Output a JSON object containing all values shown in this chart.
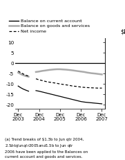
{
  "ylabel": "$b",
  "ylim": [
    -22,
    12
  ],
  "yticks": [
    10,
    5,
    0,
    -5,
    -10,
    -15,
    -20
  ],
  "xtick_labels": [
    "Dec\n2003",
    "Dec\n2004",
    "Dec\n2005",
    "Dec\n2006",
    "Dec\n2007"
  ],
  "xtick_pos": [
    0,
    1,
    2,
    3,
    4
  ],
  "xlim": [
    -0.15,
    4.15
  ],
  "legend_entries": [
    {
      "label": "Balance on current account",
      "color": "#000000",
      "ls": "solid",
      "lw": 1.0
    },
    {
      "label": "Balance on goods and services",
      "color": "#aaaaaa",
      "ls": "solid",
      "lw": 1.8
    },
    {
      "label": "Net income",
      "color": "#000000",
      "ls": "dashed",
      "lw": 0.9
    }
  ],
  "flat_line": {
    "x": [
      -0.15,
      4.15
    ],
    "y": [
      0,
      0
    ]
  },
  "goods_services_seg1": {
    "x": [
      0.0,
      0.12,
      0.25,
      0.37,
      0.5
    ],
    "y": [
      -4.5,
      -5.2,
      -5.8,
      -6.2,
      -6.5
    ]
  },
  "goods_services_seg2": {
    "x": [
      0.85,
      1.0,
      1.15,
      1.3,
      1.5,
      1.7,
      1.85,
      2.0,
      2.15,
      2.3,
      2.5,
      2.65,
      2.85,
      3.0,
      3.15,
      3.3,
      3.5,
      3.7,
      3.85,
      4.0
    ],
    "y": [
      -4.2,
      -4.0,
      -3.7,
      -3.5,
      -3.2,
      -3.0,
      -2.9,
      -2.9,
      -3.0,
      -3.1,
      -3.3,
      -3.5,
      -3.8,
      -4.0,
      -4.2,
      -4.5,
      -4.8,
      -5.0,
      -5.2,
      -5.4
    ]
  },
  "net_income_seg1": {
    "x": [
      0.0,
      0.12,
      0.25,
      0.37,
      0.5
    ],
    "y": [
      -3.8,
      -4.5,
      -5.2,
      -5.8,
      -6.2
    ]
  },
  "net_income_seg2": {
    "x": [
      0.85,
      1.0,
      1.2,
      1.4,
      1.6,
      1.8,
      2.0,
      2.2,
      2.4,
      2.6,
      2.8,
      3.0,
      3.2,
      3.4,
      3.6,
      3.8,
      4.0
    ],
    "y": [
      -7.5,
      -8.0,
      -8.5,
      -9.0,
      -9.3,
      -9.6,
      -10.0,
      -10.3,
      -10.6,
      -11.0,
      -11.2,
      -11.5,
      -11.7,
      -11.8,
      -11.9,
      -12.0,
      -12.0
    ]
  },
  "bca_seg1": {
    "x": [
      0.0,
      0.12,
      0.25,
      0.37,
      0.5
    ],
    "y": [
      -11.0,
      -11.8,
      -12.5,
      -13.0,
      -13.5
    ]
  },
  "bca_seg2": {
    "x": [
      0.85,
      1.0,
      1.2,
      1.4,
      1.6,
      1.8,
      2.0,
      2.2,
      2.4,
      2.6,
      2.8,
      3.0,
      3.2,
      3.4,
      3.6,
      3.8,
      4.0
    ],
    "y": [
      -13.2,
      -13.5,
      -14.0,
      -14.5,
      -15.0,
      -15.5,
      -16.0,
      -16.5,
      -17.0,
      -17.5,
      -18.0,
      -18.5,
      -18.8,
      -19.0,
      -19.2,
      -19.4,
      -19.6
    ]
  },
  "footnote": "(a) Trend breaks of $1.3b to Jun qtr 2004,\n$2.5b to Jun qtr 2005 and $1.5b to Jun qtr\n2006 have been applied to the Balances on\ncurrent account and goods and services.",
  "background_color": "#ffffff"
}
